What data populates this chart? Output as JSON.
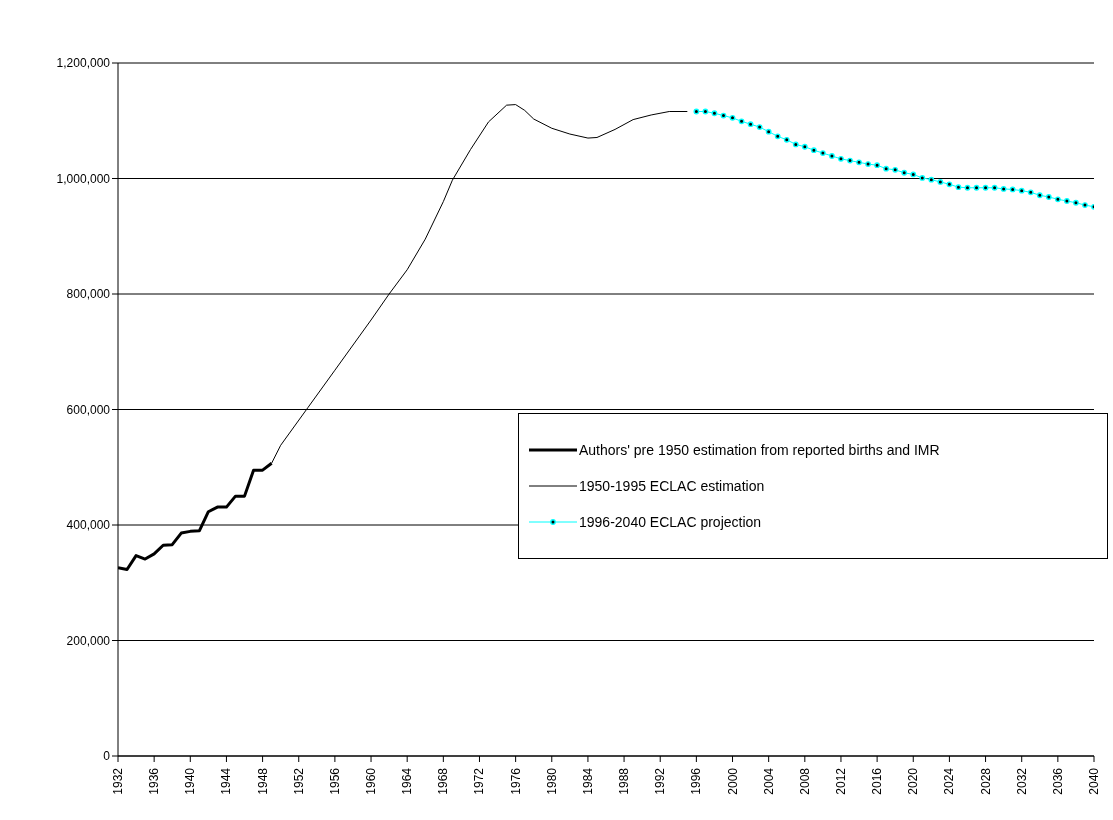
{
  "chart_data": {
    "type": "line",
    "xlim": [
      1932,
      2040
    ],
    "xticks": [
      1932,
      1936,
      1940,
      1944,
      1948,
      1952,
      1956,
      1960,
      1964,
      1968,
      1972,
      1976,
      1980,
      1984,
      1988,
      1992,
      1996,
      2000,
      2004,
      2008,
      2012,
      2016,
      2020,
      2024,
      2028,
      2032,
      2036,
      2040
    ],
    "ylim": [
      0,
      1200000
    ],
    "yticks": [
      {
        "value": 0,
        "label": "0"
      },
      {
        "value": 200000,
        "label": "200,000"
      },
      {
        "value": 400000,
        "label": "400,000"
      },
      {
        "value": 600000,
        "label": "600,000"
      },
      {
        "value": 800000,
        "label": "800,000"
      },
      {
        "value": 1000000,
        "label": "1,000,000"
      },
      {
        "value": 1200000,
        "label": "1,200,000"
      }
    ],
    "grid": "y",
    "legend": "right",
    "series": [
      {
        "name": "Authors' pre 1950 estimation from reported births and IMR",
        "color": "#000000",
        "marker": "none",
        "x": [
          1932,
          1933,
          1934,
          1935,
          1936,
          1937,
          1938,
          1939,
          1940,
          1941,
          1942,
          1943,
          1944,
          1945,
          1946,
          1947,
          1948,
          1949
        ],
        "values": [
          326000,
          323000,
          347000,
          341000,
          350000,
          365000,
          366000,
          386000,
          389000,
          390000,
          423000,
          431000,
          431000,
          450000,
          450000,
          495000,
          495000,
          507000
        ]
      },
      {
        "name": "1950-1995 ECLAC estimation",
        "color": "#000000",
        "marker": "none",
        "x": [
          1949,
          1950,
          1953,
          1956,
          1960,
          1962,
          1964,
          1966,
          1968,
          1969,
          1971,
          1973,
          1975,
          1976,
          1977,
          1978,
          1980,
          1982,
          1984,
          1985,
          1987,
          1989,
          1991,
          1993,
          1995
        ],
        "values": [
          507000,
          538000,
          603000,
          668000,
          755000,
          800000,
          842000,
          895000,
          960000,
          997000,
          1050000,
          1098000,
          1127000,
          1128000,
          1118000,
          1103000,
          1087000,
          1077000,
          1070000,
          1071000,
          1085000,
          1102000,
          1110000,
          1116000,
          1116000
        ]
      },
      {
        "name": "1996-2040 ECLAC projection",
        "color": "#00ffff",
        "marker": "circle",
        "x": [
          1996,
          1997,
          1998,
          1999,
          2000,
          2001,
          2002,
          2003,
          2004,
          2005,
          2006,
          2007,
          2008,
          2009,
          2010,
          2011,
          2012,
          2013,
          2014,
          2015,
          2016,
          2017,
          2018,
          2019,
          2020,
          2021,
          2022,
          2023,
          2024,
          2025,
          2026,
          2027,
          2028,
          2029,
          2030,
          2031,
          2032,
          2033,
          2034,
          2035,
          2036,
          2037,
          2038,
          2039,
          2040
        ],
        "values": [
          1116000,
          1116000,
          1113000,
          1109000,
          1105000,
          1099000,
          1094000,
          1089000,
          1081000,
          1073000,
          1067000,
          1059000,
          1055000,
          1049000,
          1044000,
          1039000,
          1034000,
          1031000,
          1028000,
          1025000,
          1023000,
          1017000,
          1015000,
          1010000,
          1007000,
          1001000,
          998000,
          994000,
          990000,
          985000,
          984000,
          984000,
          984000,
          984000,
          982000,
          981000,
          979000,
          976000,
          971000,
          968000,
          964000,
          961000,
          958000,
          954000,
          951000
        ]
      }
    ]
  }
}
